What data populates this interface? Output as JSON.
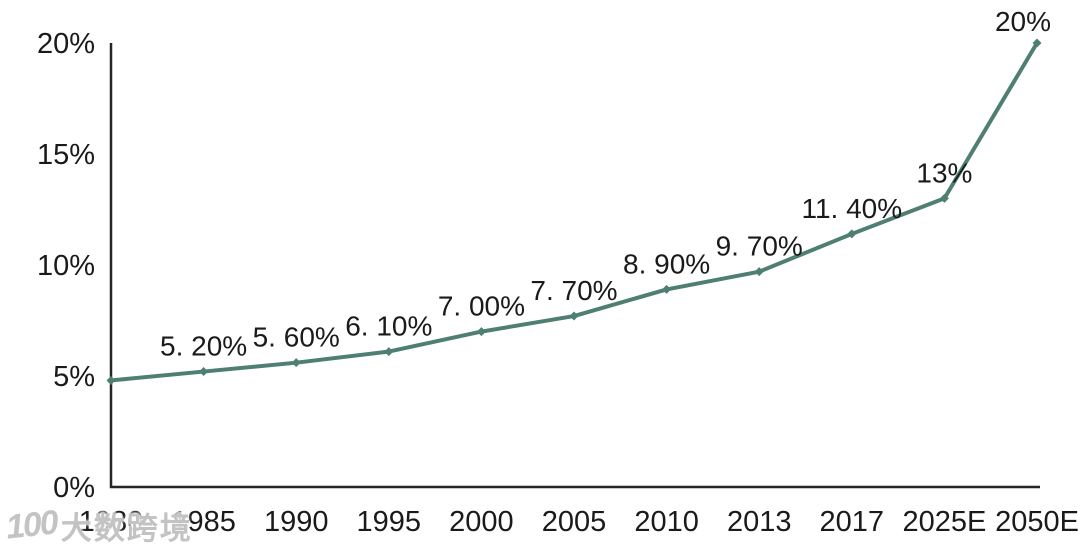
{
  "watermark": {
    "logo": "100",
    "text": "大数跨境"
  },
  "chart_data": {
    "type": "line",
    "title": "",
    "xlabel": "",
    "ylabel": "",
    "categories": [
      "1980",
      "1985",
      "1990",
      "1995",
      "2000",
      "2005",
      "2010",
      "2013",
      "2017",
      "2025E",
      "2050E"
    ],
    "values": [
      4.8,
      5.2,
      5.6,
      6.1,
      7.0,
      7.7,
      8.9,
      9.7,
      11.4,
      13,
      20
    ],
    "point_labels": [
      "",
      "5. 20%",
      "5. 60%",
      "6. 10%",
      "7. 00%",
      "7. 70%",
      "8. 90%",
      "9. 70%",
      "11. 40%",
      "13%",
      "20%"
    ],
    "ylim": [
      0,
      20
    ],
    "yticks": [
      0,
      5,
      10,
      15,
      20
    ],
    "ytick_labels": [
      "0%",
      "5%",
      "10%",
      "15%",
      "20%"
    ],
    "grid": false,
    "legend": null,
    "line_color": "#4e7f72",
    "axis_color": "#262626",
    "text_color": "#1a1a1a"
  }
}
